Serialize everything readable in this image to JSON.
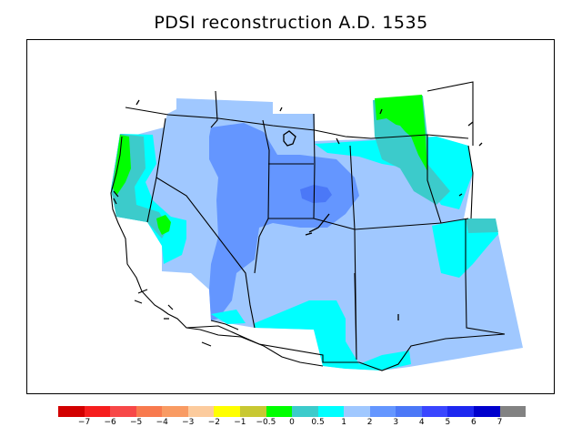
{
  "title": "PDSI reconstruction A.D. 1535",
  "legend": {
    "colors": [
      "#d20000",
      "#f61e1e",
      "#f74848",
      "#f87a4e",
      "#f99b63",
      "#fccb9d",
      "#ffff00",
      "#c8c832",
      "#00ff00",
      "#3ccbcb",
      "#00ffff",
      "#a0c8ff",
      "#6496ff",
      "#4b78f7",
      "#3a46ff",
      "#1e28f0",
      "#0000cd",
      "#828282"
    ],
    "labels": [
      "−7",
      "−6",
      "−5",
      "−4",
      "−3",
      "−2",
      "−1",
      "−0.5",
      "0",
      "0.5",
      "1",
      "2",
      "3",
      "4",
      "5",
      "6",
      "7"
    ]
  },
  "palette": {
    "light_blue": "#a0c8ff",
    "medium_blue": "#6496ff",
    "blue": "#4b78f7",
    "cyan": "#00ffff",
    "teal": "#3ccbcb",
    "green": "#00ff00"
  }
}
